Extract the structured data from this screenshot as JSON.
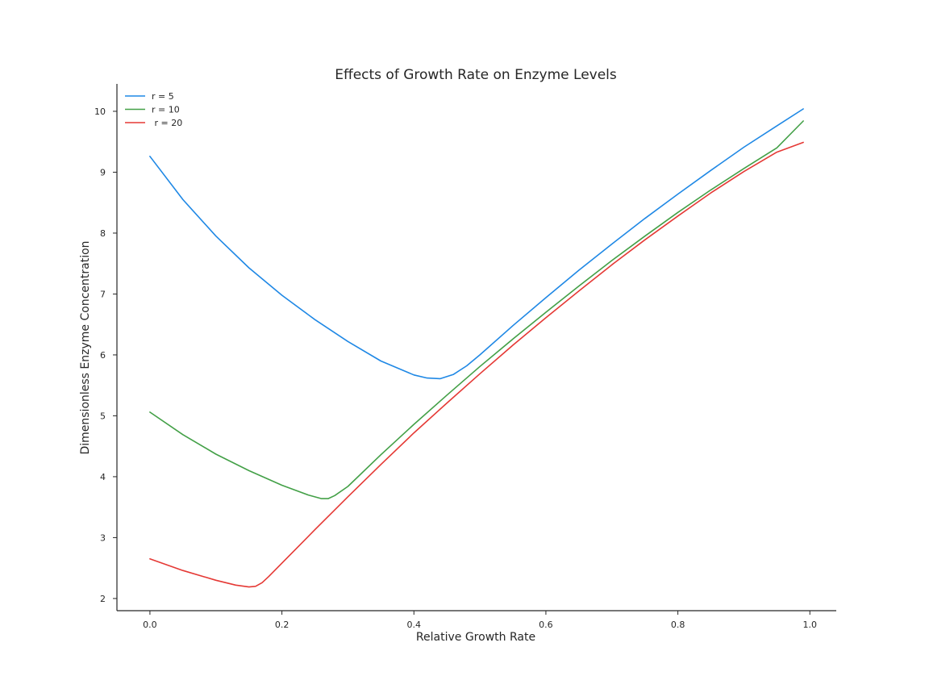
{
  "chart_data": {
    "type": "line",
    "title": "Effects of Growth Rate on Enzyme Levels",
    "xlabel": "Relative Growth Rate",
    "ylabel": "Dimensionless Enzyme Concentration",
    "xlim": [
      -0.05,
      1.04
    ],
    "ylim": [
      1.8,
      10.45
    ],
    "xticks": [
      0.0,
      0.2,
      0.4,
      0.6,
      0.8,
      1.0
    ],
    "xtick_labels": [
      "0.0",
      "0.2",
      "0.4",
      "0.6",
      "0.8",
      "1.0"
    ],
    "yticks": [
      2,
      3,
      4,
      5,
      6,
      7,
      8,
      9,
      10
    ],
    "ytick_labels": [
      "2",
      "3",
      "4",
      "5",
      "6",
      "7",
      "8",
      "9",
      "10"
    ],
    "grid": false,
    "legend_position": "top-left",
    "series": [
      {
        "name": "r = 5",
        "color": "#1f88e5",
        "x": [
          0.0,
          0.05,
          0.1,
          0.15,
          0.2,
          0.25,
          0.3,
          0.35,
          0.4,
          0.42,
          0.44,
          0.46,
          0.48,
          0.5,
          0.55,
          0.6,
          0.65,
          0.7,
          0.75,
          0.8,
          0.85,
          0.9,
          0.95,
          0.99
        ],
        "y": [
          9.26,
          8.55,
          7.95,
          7.43,
          6.98,
          6.58,
          6.22,
          5.9,
          5.67,
          5.62,
          5.61,
          5.68,
          5.82,
          6.0,
          6.48,
          6.94,
          7.39,
          7.82,
          8.24,
          8.64,
          9.03,
          9.41,
          9.76,
          10.04
        ]
      },
      {
        "name": "r = 10",
        "color": "#43a047",
        "x": [
          0.0,
          0.05,
          0.1,
          0.15,
          0.2,
          0.24,
          0.26,
          0.27,
          0.28,
          0.3,
          0.35,
          0.4,
          0.45,
          0.5,
          0.55,
          0.6,
          0.65,
          0.7,
          0.75,
          0.8,
          0.85,
          0.9,
          0.95,
          0.99
        ],
        "y": [
          5.06,
          4.69,
          4.37,
          4.1,
          3.86,
          3.7,
          3.64,
          3.64,
          3.69,
          3.84,
          4.36,
          4.86,
          5.34,
          5.81,
          6.26,
          6.7,
          7.13,
          7.55,
          7.95,
          8.34,
          8.71,
          9.06,
          9.4,
          9.84
        ]
      },
      {
        "name": " r = 20",
        "color": "#e53935",
        "x": [
          0.0,
          0.05,
          0.1,
          0.13,
          0.15,
          0.16,
          0.17,
          0.18,
          0.2,
          0.25,
          0.3,
          0.35,
          0.4,
          0.45,
          0.5,
          0.55,
          0.6,
          0.65,
          0.7,
          0.75,
          0.8,
          0.85,
          0.9,
          0.95,
          0.99
        ],
        "y": [
          2.65,
          2.46,
          2.3,
          2.22,
          2.19,
          2.2,
          2.26,
          2.36,
          2.58,
          3.13,
          3.67,
          4.2,
          4.72,
          5.21,
          5.69,
          6.16,
          6.61,
          7.05,
          7.48,
          7.89,
          8.28,
          8.66,
          9.01,
          9.33,
          9.49
        ]
      }
    ]
  }
}
